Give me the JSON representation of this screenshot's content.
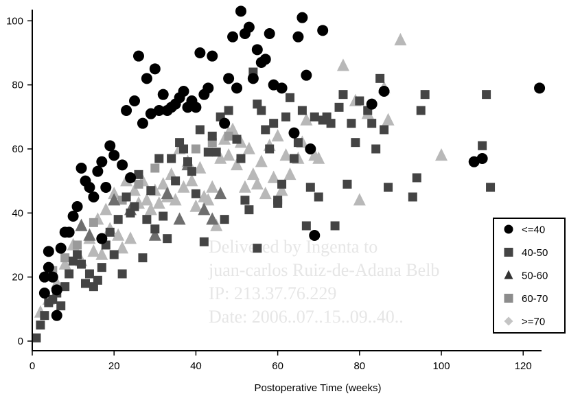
{
  "chart_data": {
    "type": "scatter",
    "xlabel": "Postoperative Time (weeks)",
    "ylabel": "",
    "xlim": [
      0,
      126
    ],
    "ylim": [
      -3,
      105
    ],
    "xticks": [
      "0",
      "20",
      "40",
      "60",
      "80",
      "100",
      "120"
    ],
    "yticks": [
      "0",
      "20",
      "40",
      "60",
      "80",
      "100"
    ],
    "legend_position": "bottom-right",
    "watermark": [
      "Delivered by Ingenta to",
      "juan-carlos Ruiz-de-Adana Belb",
      "IP: 213.37.76.229",
      "Date: 2006..07..15..09..40.."
    ],
    "series": [
      {
        "name": "<=40",
        "marker": "circle",
        "color": "#000000",
        "points": [
          [
            4,
            28
          ],
          [
            4,
            23
          ],
          [
            3,
            20
          ],
          [
            5,
            20
          ],
          [
            3,
            15
          ],
          [
            6,
            16
          ],
          [
            6,
            8
          ],
          [
            7,
            29
          ],
          [
            8,
            34
          ],
          [
            9,
            34
          ],
          [
            10,
            39
          ],
          [
            11,
            42
          ],
          [
            12,
            54
          ],
          [
            13,
            50
          ],
          [
            14,
            48
          ],
          [
            15,
            45
          ],
          [
            16,
            53
          ],
          [
            17,
            56
          ],
          [
            18,
            48
          ],
          [
            19,
            61
          ],
          [
            20,
            58
          ],
          [
            22,
            55
          ],
          [
            23,
            72
          ],
          [
            24,
            51
          ],
          [
            25,
            75
          ],
          [
            26,
            89
          ],
          [
            27,
            68
          ],
          [
            28,
            82
          ],
          [
            29,
            71
          ],
          [
            30,
            85
          ],
          [
            31,
            72
          ],
          [
            32,
            77
          ],
          [
            33,
            72
          ],
          [
            34,
            73
          ],
          [
            35,
            74
          ],
          [
            36,
            76
          ],
          [
            37,
            78
          ],
          [
            38,
            73
          ],
          [
            39,
            75
          ],
          [
            40,
            73
          ],
          [
            41,
            90
          ],
          [
            42,
            77
          ],
          [
            43,
            79
          ],
          [
            44,
            89
          ],
          [
            47,
            68
          ],
          [
            48,
            82
          ],
          [
            49,
            95
          ],
          [
            50,
            79
          ],
          [
            51,
            103
          ],
          [
            52,
            96
          ],
          [
            53,
            98
          ],
          [
            54,
            82
          ],
          [
            55,
            91
          ],
          [
            56,
            87
          ],
          [
            57,
            88
          ],
          [
            58,
            96
          ],
          [
            59,
            80
          ],
          [
            61,
            79
          ],
          [
            64,
            65
          ],
          [
            65,
            95
          ],
          [
            66,
            101
          ],
          [
            67,
            83
          ],
          [
            68,
            60
          ],
          [
            69,
            33
          ],
          [
            71,
            97
          ],
          [
            83,
            74
          ],
          [
            86,
            78
          ],
          [
            108,
            56
          ],
          [
            110,
            57
          ],
          [
            124,
            79
          ],
          [
            17,
            32
          ]
        ]
      },
      {
        "name": "40-50",
        "marker": "square",
        "color": "#444444",
        "points": [
          [
            1,
            1
          ],
          [
            2,
            5
          ],
          [
            3,
            8
          ],
          [
            4,
            12
          ],
          [
            5,
            13
          ],
          [
            6,
            15
          ],
          [
            7,
            11
          ],
          [
            8,
            17
          ],
          [
            9,
            21
          ],
          [
            10,
            25
          ],
          [
            11,
            27
          ],
          [
            12,
            24
          ],
          [
            13,
            18
          ],
          [
            14,
            21
          ],
          [
            15,
            17
          ],
          [
            16,
            19
          ],
          [
            17,
            23
          ],
          [
            18,
            30
          ],
          [
            19,
            34
          ],
          [
            20,
            27
          ],
          [
            21,
            38
          ],
          [
            22,
            21
          ],
          [
            23,
            45
          ],
          [
            24,
            40
          ],
          [
            25,
            42
          ],
          [
            26,
            52
          ],
          [
            27,
            26
          ],
          [
            28,
            38
          ],
          [
            29,
            47
          ],
          [
            30,
            35
          ],
          [
            31,
            57
          ],
          [
            32,
            39
          ],
          [
            33,
            32
          ],
          [
            34,
            57
          ],
          [
            35,
            50
          ],
          [
            36,
            62
          ],
          [
            37,
            60
          ],
          [
            38,
            56
          ],
          [
            39,
            53
          ],
          [
            40,
            46
          ],
          [
            41,
            66
          ],
          [
            42,
            31
          ],
          [
            43,
            59
          ],
          [
            44,
            64
          ],
          [
            45,
            59
          ],
          [
            46,
            70
          ],
          [
            47,
            38
          ],
          [
            48,
            72
          ],
          [
            50,
            63
          ],
          [
            51,
            57
          ],
          [
            52,
            44
          ],
          [
            53,
            41
          ],
          [
            54,
            84
          ],
          [
            55,
            74
          ],
          [
            56,
            72
          ],
          [
            57,
            66
          ],
          [
            58,
            60
          ],
          [
            59,
            68
          ],
          [
            60,
            43
          ],
          [
            61,
            49
          ],
          [
            62,
            70
          ],
          [
            63,
            76
          ],
          [
            64,
            57
          ],
          [
            65,
            62
          ],
          [
            66,
            72
          ],
          [
            67,
            36
          ],
          [
            68,
            48
          ],
          [
            69,
            70
          ],
          [
            70,
            45
          ],
          [
            71,
            69
          ],
          [
            72,
            70
          ],
          [
            73,
            68
          ],
          [
            74,
            36
          ],
          [
            75,
            73
          ],
          [
            76,
            77
          ],
          [
            77,
            49
          ],
          [
            78,
            68
          ],
          [
            79,
            62
          ],
          [
            80,
            75
          ],
          [
            82,
            72
          ],
          [
            83,
            68
          ],
          [
            84,
            60
          ],
          [
            85,
            82
          ],
          [
            86,
            66
          ],
          [
            87,
            48
          ],
          [
            93,
            45
          ],
          [
            94,
            51
          ],
          [
            95,
            72
          ],
          [
            96,
            77
          ],
          [
            110,
            61
          ],
          [
            111,
            77
          ],
          [
            112,
            48
          ],
          [
            55,
            29
          ],
          [
            60,
            44
          ]
        ]
      },
      {
        "name": "50-60",
        "marker": "triangle",
        "color": "#6e6e6e",
        "points": [
          [
            12,
            36
          ],
          [
            14,
            33
          ],
          [
            20,
            44
          ],
          [
            24,
            41
          ],
          [
            30,
            33
          ],
          [
            33,
            46
          ],
          [
            36,
            38
          ],
          [
            38,
            55
          ],
          [
            42,
            41
          ],
          [
            44,
            38
          ],
          [
            46,
            46
          ]
        ]
      },
      {
        "name": "60-70",
        "marker": "square",
        "color": "#9a9a9a",
        "points": [
          [
            5,
            22
          ],
          [
            8,
            26
          ],
          [
            11,
            30
          ],
          [
            15,
            37
          ],
          [
            22,
            44
          ],
          [
            26,
            49
          ],
          [
            30,
            54
          ],
          [
            34,
            57
          ],
          [
            40,
            60
          ],
          [
            44,
            62
          ],
          [
            48,
            64
          ]
        ]
      },
      {
        "name": ">=70",
        "marker": "triangle",
        "color": "#b8b8b8",
        "points": [
          [
            2,
            9
          ],
          [
            4,
            13
          ],
          [
            6,
            18
          ],
          [
            8,
            24
          ],
          [
            10,
            30
          ],
          [
            12,
            25
          ],
          [
            14,
            32
          ],
          [
            15,
            28
          ],
          [
            16,
            38
          ],
          [
            17,
            27
          ],
          [
            18,
            41
          ],
          [
            19,
            35
          ],
          [
            20,
            46
          ],
          [
            21,
            33
          ],
          [
            22,
            29
          ],
          [
            23,
            50
          ],
          [
            24,
            32
          ],
          [
            25,
            47
          ],
          [
            26,
            43
          ],
          [
            27,
            50
          ],
          [
            28,
            44
          ],
          [
            29,
            41
          ],
          [
            30,
            47
          ],
          [
            31,
            43
          ],
          [
            32,
            49
          ],
          [
            33,
            45
          ],
          [
            34,
            52
          ],
          [
            35,
            44
          ],
          [
            36,
            60
          ],
          [
            37,
            48
          ],
          [
            38,
            56
          ],
          [
            39,
            50
          ],
          [
            40,
            42
          ],
          [
            41,
            54
          ],
          [
            42,
            45
          ],
          [
            43,
            44
          ],
          [
            44,
            48
          ],
          [
            45,
            36
          ],
          [
            46,
            57
          ],
          [
            47,
            63
          ],
          [
            48,
            58
          ],
          [
            49,
            66
          ],
          [
            50,
            55
          ],
          [
            51,
            62
          ],
          [
            52,
            48
          ],
          [
            53,
            60
          ],
          [
            54,
            52
          ],
          [
            55,
            49
          ],
          [
            56,
            56
          ],
          [
            57,
            46
          ],
          [
            58,
            61
          ],
          [
            59,
            51
          ],
          [
            60,
            64
          ],
          [
            61,
            47
          ],
          [
            62,
            58
          ],
          [
            63,
            52
          ],
          [
            65,
            57
          ],
          [
            66,
            62
          ],
          [
            67,
            69
          ],
          [
            69,
            58
          ],
          [
            70,
            57
          ],
          [
            76,
            86
          ],
          [
            79,
            75
          ],
          [
            80,
            44
          ],
          [
            82,
            71
          ],
          [
            87,
            69
          ],
          [
            90,
            94
          ],
          [
            86,
            79
          ],
          [
            100,
            58
          ],
          [
            48,
            65
          ]
        ]
      }
    ]
  }
}
